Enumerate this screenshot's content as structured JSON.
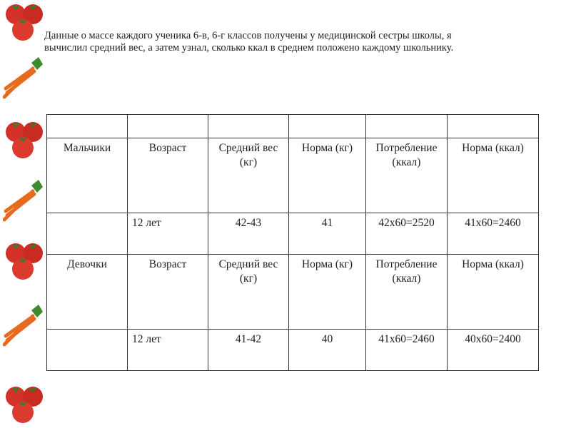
{
  "intro": "Данные о массе каждого ученика 6-в, 6-г классов  получены  у медицинской сестры школы,  я вычислил средний вес, а затем узнал, сколько ккал в среднем положено каждому школьнику.",
  "decor": [
    "tomato-icon",
    "carrot-icon",
    "tomato-icon",
    "carrot-icon",
    "tomato-icon",
    "carrot-icon",
    "tomato-icon"
  ],
  "table": {
    "boys_header": [
      "Мальчики",
      "Возраст",
      "Средний вес (кг)",
      "Норма (кг)",
      "Потребление (ккал)",
      "Норма (ккал)"
    ],
    "boys_row": [
      "",
      "12 лет",
      "42-43",
      "41",
      "42x60=2520",
      "41x60=2460"
    ],
    "girls_header": [
      "Девочки",
      "Возраст",
      "Средний вес (кг)",
      "Норма (кг)",
      "Потребление (ккал)",
      "Норма (ккал)"
    ],
    "girls_row": [
      "",
      "12 лет",
      "41-42",
      "40",
      "41x60=2460",
      "40x60=2400"
    ]
  }
}
